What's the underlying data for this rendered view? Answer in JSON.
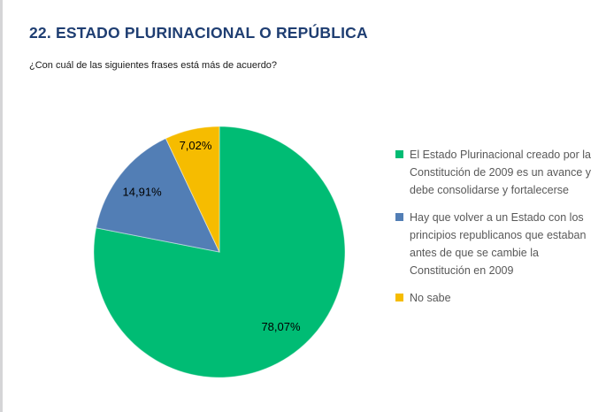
{
  "header": {
    "title": "22. ESTADO PLURINACIONAL O REPÚBLICA",
    "question": "¿Con cuál de las siguientes frases está más de acuerdo?"
  },
  "colors": {
    "title_navy": "#1f3e72",
    "green": "#00bc74",
    "blue": "#527eb5",
    "yellow": "#f6bc00",
    "legend_text": "#595959",
    "left_edge_line": "#d5d5d7",
    "slice_label_text": "#000000"
  },
  "chart_data": {
    "type": "pie",
    "title": "22. ESTADO PLURINACIONAL O REPÚBLICA",
    "subtitle": "¿Con cuál de las siguientes frases está más de acuerdo?",
    "start_angle_deg_from_top": 0,
    "direction": "clockwise",
    "legend_position": "right",
    "decimal_separator": ",",
    "slices": [
      {
        "name": "El Estado Plurinacional creado por la Constitución de 2009 es un avance y debe consolidarse y fortalecerse",
        "value": 78.07,
        "label": "78,07%",
        "color": "#00bc74"
      },
      {
        "name": "Hay que volver a un Estado con los principios republicanos que estaban antes de que se cambie la Constitución en 2009",
        "value": 14.91,
        "label": "14,91%",
        "color": "#527eb5"
      },
      {
        "name": "No sabe",
        "value": 7.02,
        "label": "7,02%",
        "color": "#f6bc00"
      }
    ]
  }
}
